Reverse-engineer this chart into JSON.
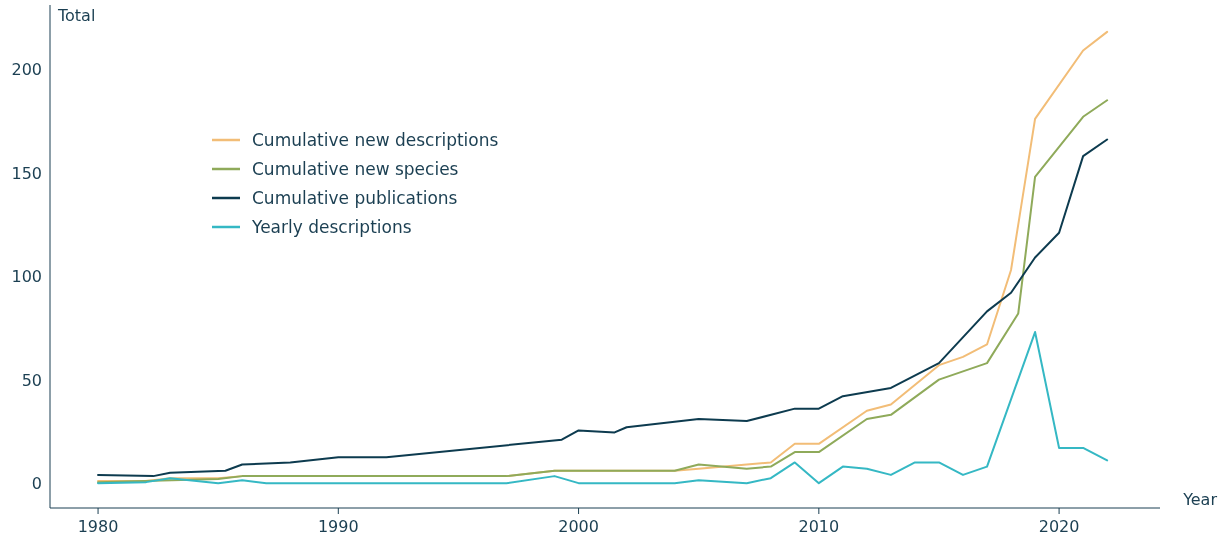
{
  "chart_data": {
    "type": "line",
    "xlabel": "Year",
    "ylabel": "Total",
    "xlim": [
      1978,
      2024.2
    ],
    "ylim": [
      -12,
      231
    ],
    "xticks": [
      1980,
      1990,
      2000,
      2010,
      2020
    ],
    "yticks": [
      0,
      50,
      100,
      150,
      200
    ],
    "grid": false,
    "legend": "top left",
    "marker": "none",
    "line_style": "solid",
    "series": [
      {
        "name": "Cumulative new descriptions",
        "color": "#f2bd77",
        "x": [
          1980,
          1982,
          1983,
          1985,
          1986,
          1997,
          1999,
          2004,
          2005,
          2007,
          2008,
          2009,
          2010,
          2012,
          2013,
          2015,
          2016,
          2017,
          2018,
          2019,
          2021,
          2022
        ],
        "values": [
          1,
          1,
          2.4,
          2.4,
          3.4,
          3.4,
          6,
          6,
          7,
          9,
          10,
          19,
          19,
          35,
          38,
          57,
          61,
          67,
          103,
          176,
          209,
          218
        ]
      },
      {
        "name": "Cumulative new species",
        "color": "#8faa5a",
        "x": [
          1980,
          1985,
          1986,
          1997,
          1999,
          2004,
          2005,
          2007,
          2008,
          2009,
          2010,
          2012,
          2013,
          2015,
          2017,
          2018.3,
          2019,
          2021,
          2022
        ],
        "values": [
          0.5,
          2,
          3.4,
          3.4,
          6,
          6,
          9,
          7,
          8,
          15,
          15,
          31,
          33,
          50,
          58,
          82,
          148,
          177,
          185
        ]
      },
      {
        "name": "Cumulative publications",
        "color": "#0d3b4f",
        "x": [
          1980,
          1982.3,
          1983,
          1985.3,
          1986,
          1988,
          1990,
          1992,
          1999.3,
          2000,
          2001.5,
          2002,
          2005,
          2007,
          2009,
          2010,
          2011,
          2013,
          2015,
          2017,
          2018,
          2019,
          2020,
          2021,
          2022
        ],
        "values": [
          4,
          3.4,
          5,
          6,
          9,
          10,
          12.5,
          12.5,
          21,
          25.5,
          24.5,
          27,
          31,
          30,
          36,
          36,
          42,
          46,
          58,
          83,
          92,
          109,
          121,
          158,
          166
        ]
      },
      {
        "name": "Yearly descriptions",
        "color": "#35b8c4",
        "x": [
          1980,
          1982,
          1983,
          1985,
          1986,
          1987,
          1997,
          1999,
          2000,
          2004,
          2005,
          2007,
          2008,
          2009,
          2010,
          2011,
          2012,
          2013,
          2014,
          2015,
          2016,
          2017,
          2019,
          2020,
          2021,
          2022
        ],
        "values": [
          0,
          0.5,
          2.4,
          0,
          1.4,
          0,
          0,
          3.4,
          0,
          0,
          1.4,
          0,
          2.4,
          10,
          0,
          8,
          7,
          4,
          10,
          10,
          4,
          8,
          73,
          17,
          17,
          11
        ]
      }
    ]
  }
}
